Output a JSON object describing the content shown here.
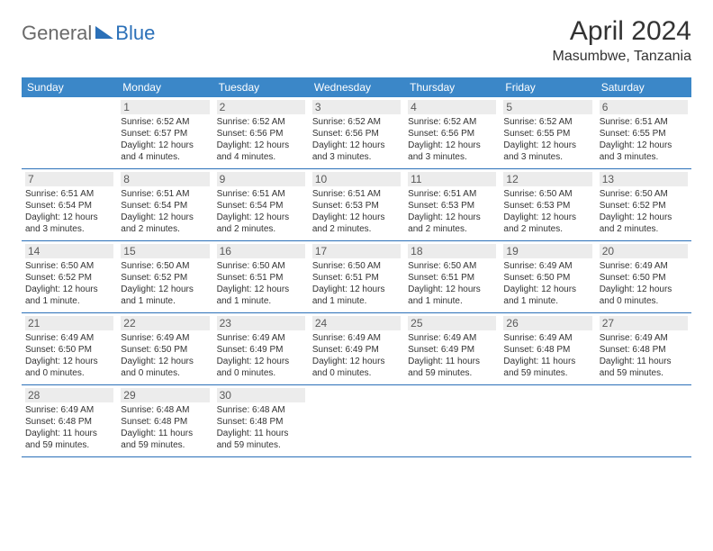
{
  "logo": {
    "general": "General",
    "blue": "Blue"
  },
  "title": "April 2024",
  "location": "Masumbwe, Tanzania",
  "colors": {
    "header_bg": "#3b87c8",
    "header_text": "#ffffff",
    "divider": "#2b70b8",
    "daynum_bg": "#ececec",
    "daynum_text": "#5a5a5a",
    "body_text": "#333333",
    "logo_gray": "#6a6a6a",
    "logo_blue": "#2b70b8"
  },
  "day_names": [
    "Sunday",
    "Monday",
    "Tuesday",
    "Wednesday",
    "Thursday",
    "Friday",
    "Saturday"
  ],
  "weeks": [
    [
      null,
      {
        "n": "1",
        "sr": "Sunrise: 6:52 AM",
        "ss": "Sunset: 6:57 PM",
        "d1": "Daylight: 12 hours",
        "d2": "and 4 minutes."
      },
      {
        "n": "2",
        "sr": "Sunrise: 6:52 AM",
        "ss": "Sunset: 6:56 PM",
        "d1": "Daylight: 12 hours",
        "d2": "and 4 minutes."
      },
      {
        "n": "3",
        "sr": "Sunrise: 6:52 AM",
        "ss": "Sunset: 6:56 PM",
        "d1": "Daylight: 12 hours",
        "d2": "and 3 minutes."
      },
      {
        "n": "4",
        "sr": "Sunrise: 6:52 AM",
        "ss": "Sunset: 6:56 PM",
        "d1": "Daylight: 12 hours",
        "d2": "and 3 minutes."
      },
      {
        "n": "5",
        "sr": "Sunrise: 6:52 AM",
        "ss": "Sunset: 6:55 PM",
        "d1": "Daylight: 12 hours",
        "d2": "and 3 minutes."
      },
      {
        "n": "6",
        "sr": "Sunrise: 6:51 AM",
        "ss": "Sunset: 6:55 PM",
        "d1": "Daylight: 12 hours",
        "d2": "and 3 minutes."
      }
    ],
    [
      {
        "n": "7",
        "sr": "Sunrise: 6:51 AM",
        "ss": "Sunset: 6:54 PM",
        "d1": "Daylight: 12 hours",
        "d2": "and 3 minutes."
      },
      {
        "n": "8",
        "sr": "Sunrise: 6:51 AM",
        "ss": "Sunset: 6:54 PM",
        "d1": "Daylight: 12 hours",
        "d2": "and 2 minutes."
      },
      {
        "n": "9",
        "sr": "Sunrise: 6:51 AM",
        "ss": "Sunset: 6:54 PM",
        "d1": "Daylight: 12 hours",
        "d2": "and 2 minutes."
      },
      {
        "n": "10",
        "sr": "Sunrise: 6:51 AM",
        "ss": "Sunset: 6:53 PM",
        "d1": "Daylight: 12 hours",
        "d2": "and 2 minutes."
      },
      {
        "n": "11",
        "sr": "Sunrise: 6:51 AM",
        "ss": "Sunset: 6:53 PM",
        "d1": "Daylight: 12 hours",
        "d2": "and 2 minutes."
      },
      {
        "n": "12",
        "sr": "Sunrise: 6:50 AM",
        "ss": "Sunset: 6:53 PM",
        "d1": "Daylight: 12 hours",
        "d2": "and 2 minutes."
      },
      {
        "n": "13",
        "sr": "Sunrise: 6:50 AM",
        "ss": "Sunset: 6:52 PM",
        "d1": "Daylight: 12 hours",
        "d2": "and 2 minutes."
      }
    ],
    [
      {
        "n": "14",
        "sr": "Sunrise: 6:50 AM",
        "ss": "Sunset: 6:52 PM",
        "d1": "Daylight: 12 hours",
        "d2": "and 1 minute."
      },
      {
        "n": "15",
        "sr": "Sunrise: 6:50 AM",
        "ss": "Sunset: 6:52 PM",
        "d1": "Daylight: 12 hours",
        "d2": "and 1 minute."
      },
      {
        "n": "16",
        "sr": "Sunrise: 6:50 AM",
        "ss": "Sunset: 6:51 PM",
        "d1": "Daylight: 12 hours",
        "d2": "and 1 minute."
      },
      {
        "n": "17",
        "sr": "Sunrise: 6:50 AM",
        "ss": "Sunset: 6:51 PM",
        "d1": "Daylight: 12 hours",
        "d2": "and 1 minute."
      },
      {
        "n": "18",
        "sr": "Sunrise: 6:50 AM",
        "ss": "Sunset: 6:51 PM",
        "d1": "Daylight: 12 hours",
        "d2": "and 1 minute."
      },
      {
        "n": "19",
        "sr": "Sunrise: 6:49 AM",
        "ss": "Sunset: 6:50 PM",
        "d1": "Daylight: 12 hours",
        "d2": "and 1 minute."
      },
      {
        "n": "20",
        "sr": "Sunrise: 6:49 AM",
        "ss": "Sunset: 6:50 PM",
        "d1": "Daylight: 12 hours",
        "d2": "and 0 minutes."
      }
    ],
    [
      {
        "n": "21",
        "sr": "Sunrise: 6:49 AM",
        "ss": "Sunset: 6:50 PM",
        "d1": "Daylight: 12 hours",
        "d2": "and 0 minutes."
      },
      {
        "n": "22",
        "sr": "Sunrise: 6:49 AM",
        "ss": "Sunset: 6:50 PM",
        "d1": "Daylight: 12 hours",
        "d2": "and 0 minutes."
      },
      {
        "n": "23",
        "sr": "Sunrise: 6:49 AM",
        "ss": "Sunset: 6:49 PM",
        "d1": "Daylight: 12 hours",
        "d2": "and 0 minutes."
      },
      {
        "n": "24",
        "sr": "Sunrise: 6:49 AM",
        "ss": "Sunset: 6:49 PM",
        "d1": "Daylight: 12 hours",
        "d2": "and 0 minutes."
      },
      {
        "n": "25",
        "sr": "Sunrise: 6:49 AM",
        "ss": "Sunset: 6:49 PM",
        "d1": "Daylight: 11 hours",
        "d2": "and 59 minutes."
      },
      {
        "n": "26",
        "sr": "Sunrise: 6:49 AM",
        "ss": "Sunset: 6:48 PM",
        "d1": "Daylight: 11 hours",
        "d2": "and 59 minutes."
      },
      {
        "n": "27",
        "sr": "Sunrise: 6:49 AM",
        "ss": "Sunset: 6:48 PM",
        "d1": "Daylight: 11 hours",
        "d2": "and 59 minutes."
      }
    ],
    [
      {
        "n": "28",
        "sr": "Sunrise: 6:49 AM",
        "ss": "Sunset: 6:48 PM",
        "d1": "Daylight: 11 hours",
        "d2": "and 59 minutes."
      },
      {
        "n": "29",
        "sr": "Sunrise: 6:48 AM",
        "ss": "Sunset: 6:48 PM",
        "d1": "Daylight: 11 hours",
        "d2": "and 59 minutes."
      },
      {
        "n": "30",
        "sr": "Sunrise: 6:48 AM",
        "ss": "Sunset: 6:48 PM",
        "d1": "Daylight: 11 hours",
        "d2": "and 59 minutes."
      },
      null,
      null,
      null,
      null
    ]
  ]
}
